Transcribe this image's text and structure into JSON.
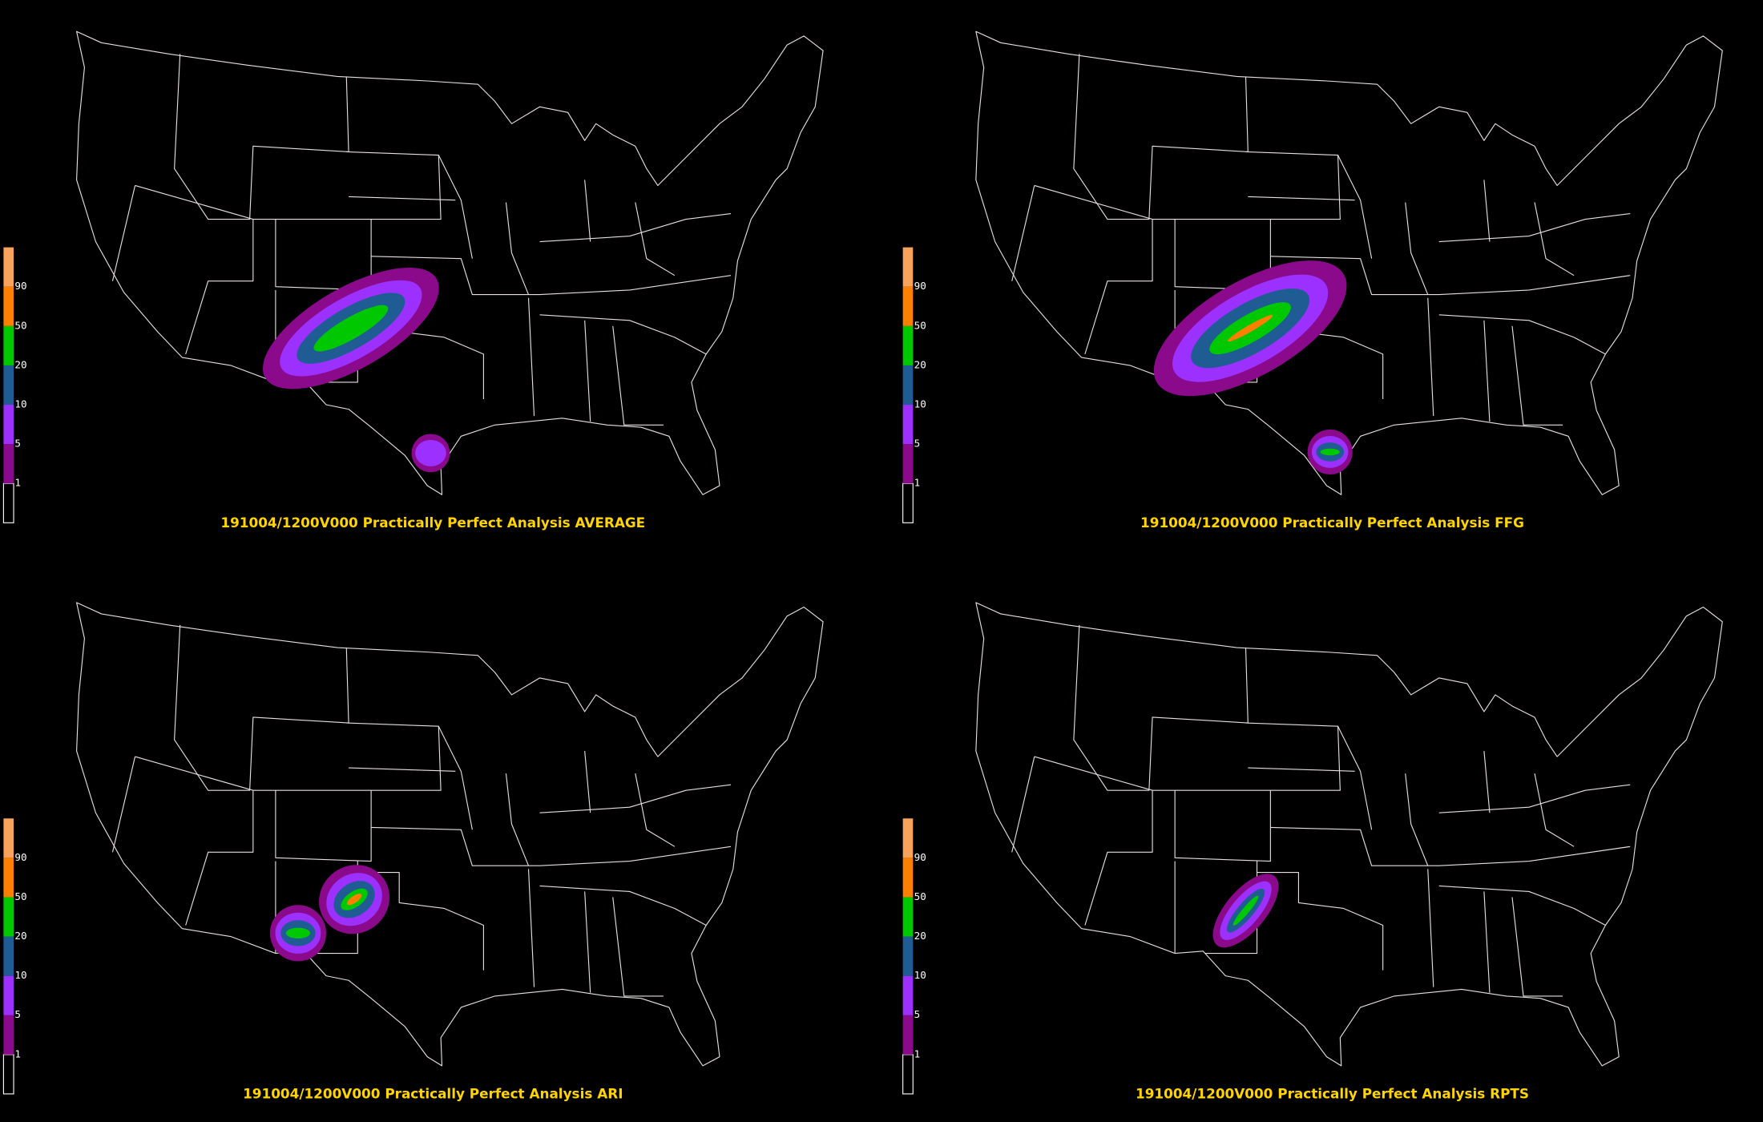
{
  "panels": [
    {
      "title": "191004/1200V000 Practically Perfect Analysis AVERAGE"
    },
    {
      "title": "191004/1200V000 Practically Perfect Analysis FFG"
    },
    {
      "title": "191004/1200V000 Practically Perfect Analysis ARI"
    },
    {
      "title": "191004/1200V000 Practically Perfect Analysis RPTS"
    }
  ],
  "legend": {
    "levels": [
      1,
      5,
      10,
      20,
      50,
      90
    ],
    "colors": [
      "#8b0a8b",
      "#9b30ff",
      "#1f5c94",
      "#00c800",
      "#ff8000",
      "#f7a35c"
    ]
  }
}
